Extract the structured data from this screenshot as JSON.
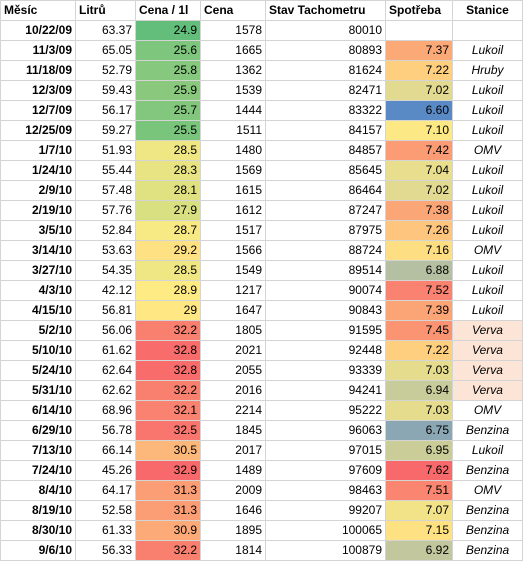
{
  "headers": [
    "Měsíc",
    "Litrů",
    "Cena / 1l",
    "Cena",
    "Stav Tachometru",
    "Spotřeba",
    "Stanice"
  ],
  "rows": [
    {
      "date": "10/22/09",
      "liters": "63.37",
      "price": "24.9",
      "cost": "1578",
      "odo": "80010",
      "cons": "",
      "station": ""
    },
    {
      "date": "11/3/09",
      "liters": "65.05",
      "price": "25.6",
      "cost": "1665",
      "odo": "80893",
      "cons": "7.37",
      "station": "Lukoil"
    },
    {
      "date": "11/18/09",
      "liters": "52.79",
      "price": "25.8",
      "cost": "1362",
      "odo": "81624",
      "cons": "7.22",
      "station": "Hruby"
    },
    {
      "date": "12/3/09",
      "liters": "59.43",
      "price": "25.9",
      "cost": "1539",
      "odo": "82471",
      "cons": "7.02",
      "station": "Lukoil"
    },
    {
      "date": "12/7/09",
      "liters": "56.17",
      "price": "25.7",
      "cost": "1444",
      "odo": "83322",
      "cons": "6.60",
      "station": "Lukoil"
    },
    {
      "date": "12/25/09",
      "liters": "59.27",
      "price": "25.5",
      "cost": "1511",
      "odo": "84157",
      "cons": "7.10",
      "station": "Lukoil"
    },
    {
      "date": "1/7/10",
      "liters": "51.93",
      "price": "28.5",
      "cost": "1480",
      "odo": "84857",
      "cons": "7.42",
      "station": "OMV"
    },
    {
      "date": "1/24/10",
      "liters": "55.44",
      "price": "28.3",
      "cost": "1569",
      "odo": "85645",
      "cons": "7.04",
      "station": "Lukoil"
    },
    {
      "date": "2/9/10",
      "liters": "57.48",
      "price": "28.1",
      "cost": "1615",
      "odo": "86464",
      "cons": "7.02",
      "station": "Lukoil"
    },
    {
      "date": "2/19/10",
      "liters": "57.76",
      "price": "27.9",
      "cost": "1612",
      "odo": "87247",
      "cons": "7.38",
      "station": "Lukoil"
    },
    {
      "date": "3/5/10",
      "liters": "52.84",
      "price": "28.7",
      "cost": "1517",
      "odo": "87975",
      "cons": "7.26",
      "station": "Lukoil"
    },
    {
      "date": "3/14/10",
      "liters": "53.63",
      "price": "29.2",
      "cost": "1566",
      "odo": "88724",
      "cons": "7.16",
      "station": "OMV"
    },
    {
      "date": "3/27/10",
      "liters": "54.35",
      "price": "28.5",
      "cost": "1549",
      "odo": "89514",
      "cons": "6.88",
      "station": "Lukoil"
    },
    {
      "date": "4/3/10",
      "liters": "42.12",
      "price": "28.9",
      "cost": "1217",
      "odo": "90074",
      "cons": "7.52",
      "station": "Lukoil"
    },
    {
      "date": "4/15/10",
      "liters": "56.81",
      "price": "29",
      "cost": "1647",
      "odo": "90843",
      "cons": "7.39",
      "station": "Lukoil"
    },
    {
      "date": "5/2/10",
      "liters": "56.06",
      "price": "32.2",
      "cost": "1805",
      "odo": "91595",
      "cons": "7.45",
      "station": "Verva"
    },
    {
      "date": "5/10/10",
      "liters": "61.62",
      "price": "32.8",
      "cost": "2021",
      "odo": "92448",
      "cons": "7.22",
      "station": "Verva"
    },
    {
      "date": "5/24/10",
      "liters": "62.64",
      "price": "32.8",
      "cost": "2055",
      "odo": "93339",
      "cons": "7.03",
      "station": "Verva"
    },
    {
      "date": "5/31/10",
      "liters": "62.62",
      "price": "32.2",
      "cost": "2016",
      "odo": "94241",
      "cons": "6.94",
      "station": "Verva"
    },
    {
      "date": "6/14/10",
      "liters": "68.96",
      "price": "32.1",
      "cost": "2214",
      "odo": "95222",
      "cons": "7.03",
      "station": "OMV"
    },
    {
      "date": "6/29/10",
      "liters": "56.78",
      "price": "32.5",
      "cost": "1845",
      "odo": "96063",
      "cons": "6.75",
      "station": "Benzina"
    },
    {
      "date": "7/13/10",
      "liters": "66.14",
      "price": "30.5",
      "cost": "2017",
      "odo": "97015",
      "cons": "6.95",
      "station": "Lukoil"
    },
    {
      "date": "7/24/10",
      "liters": "45.26",
      "price": "32.9",
      "cost": "1489",
      "odo": "97609",
      "cons": "7.62",
      "station": "Benzina"
    },
    {
      "date": "8/4/10",
      "liters": "64.17",
      "price": "31.3",
      "cost": "2009",
      "odo": "98463",
      "cons": "7.51",
      "station": "OMV"
    },
    {
      "date": "8/19/10",
      "liters": "52.58",
      "price": "31.3",
      "cost": "1646",
      "odo": "99207",
      "cons": "7.07",
      "station": "Benzina"
    },
    {
      "date": "8/30/10",
      "liters": "61.33",
      "price": "30.9",
      "cost": "1895",
      "odo": "100065",
      "cons": "7.15",
      "station": "Benzina"
    },
    {
      "date": "9/6/10",
      "liters": "56.33",
      "price": "32.2",
      "cost": "1814",
      "odo": "100879",
      "cons": "6.92",
      "station": "Benzina"
    }
  ],
  "colors": {
    "scale_green": "#63be7b",
    "scale_yellow": "#ffeb84",
    "scale_red": "#f8696b",
    "scale_blue": "#5a8ac6",
    "verva_highlight": "#fce4d6"
  }
}
